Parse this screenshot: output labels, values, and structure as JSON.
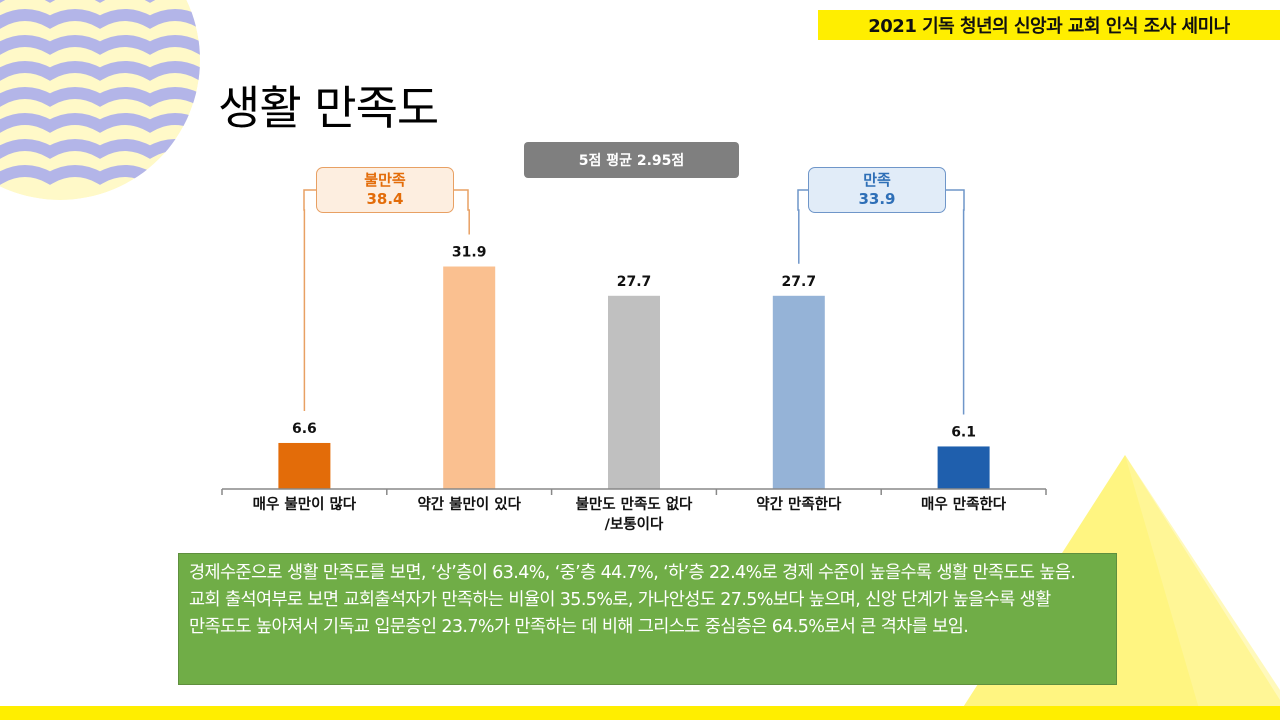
{
  "header": {
    "banner": "2021 기독 청년의 신앙과 교회 인식 조사 세미나"
  },
  "title": "생활 만족도",
  "average_badge": "5점 평균 2.95점",
  "groups": {
    "dissatisfied": {
      "label": "불만족",
      "value": "38.4"
    },
    "satisfied": {
      "label": "만족",
      "value": "33.9"
    }
  },
  "chart_data": {
    "type": "bar",
    "categories": [
      [
        "매우 불만이 많다"
      ],
      [
        "약간 불만이 있다"
      ],
      [
        "불만도 만족도 없다",
        "/보통이다"
      ],
      [
        "약간 만족한다"
      ],
      [
        "매우 만족한다"
      ]
    ],
    "values": [
      6.6,
      31.9,
      27.7,
      27.7,
      6.1
    ],
    "value_labels": [
      "6.6",
      "31.9",
      "27.7",
      "27.7",
      "6.1"
    ],
    "colors": [
      "#e36c09",
      "#fac090",
      "#c0c0c0",
      "#95b3d7",
      "#1f5fad"
    ],
    "title": "",
    "xlabel": "",
    "ylabel": "",
    "ylim": [
      0,
      40
    ],
    "grid": false
  },
  "summary": "경제수준으로 생활 만족도를 보면, ‘상’층이 63.4%, ‘중’층 44.7%, ‘하’층 22.4%로 경제 수준이 높을수록 생활 만족도도 높음. 교회 출석여부로 보면 교회출석자가 만족하는 비율이 35.5%로, 가나안성도 27.5%보다  높으며, 신앙 단계가 높을수록 생활 만족도도 높아져서 기독교 입문층인 23.7%가 만족하는 데 비해 그리스도 중심층은 64.5%로서 큰 격차를 보임.",
  "colors": {
    "banner": "#ffee00",
    "summary_bg": "#70ad47",
    "badge_bg": "#7f7f7f",
    "wave": "#b3b5e8",
    "deco_yellow": "#fff36b"
  },
  "decorations": {
    "top_left": "wave-pattern",
    "bottom_right": "yellow-triangle",
    "bottom": "yellow-stripe"
  }
}
